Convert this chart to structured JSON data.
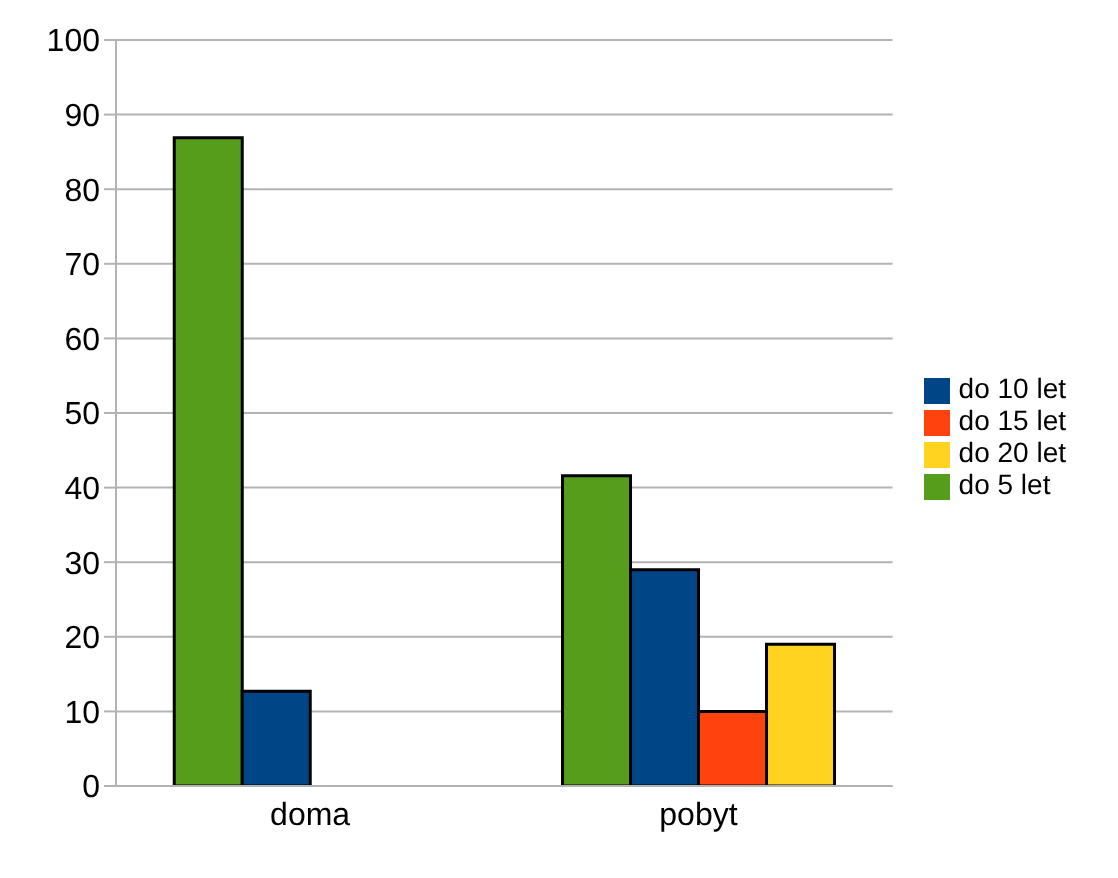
{
  "chart_data": {
    "type": "bar",
    "categories": [
      "doma",
      "pobyt"
    ],
    "series": [
      {
        "name": "do 5 let",
        "color": "#579d1c",
        "values": [
          86.9,
          41.6
        ]
      },
      {
        "name": "do 10 let",
        "color": "#004586",
        "values": [
          12.7,
          29
        ]
      },
      {
        "name": "do 15 let",
        "color": "#ff420e",
        "values": [
          null,
          10
        ]
      },
      {
        "name": "do 20 let",
        "color": "#ffd320",
        "values": [
          null,
          19
        ]
      }
    ],
    "ylim": [
      0,
      100
    ],
    "yticks": [
      0,
      10,
      20,
      30,
      40,
      50,
      60,
      70,
      80,
      90,
      100
    ],
    "grid": "y",
    "legend": "right"
  }
}
